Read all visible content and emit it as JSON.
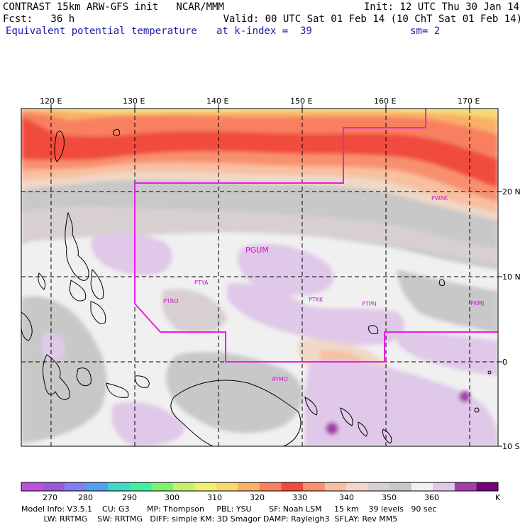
{
  "header": {
    "line1_left": "CONTRAST 15km ARW-GFS init   NCAR/MMM",
    "line1_right": "Init: 12 UTC Thu 30 Jan 14",
    "line2_left": "Fcst:   36 h",
    "line2_right": "Valid: 00 UTC Sat 01 Feb 14 (10 ChT Sat 01 Feb 14)",
    "line3_left": "Equivalent potential temperature",
    "line3_mid": "at k-index =  39",
    "line3_right": "sm= 2"
  },
  "map": {
    "lon_labels": [
      "120 E",
      "130 E",
      "140 E",
      "150 E",
      "160 E",
      "170 E"
    ],
    "lat_labels": [
      "20 N",
      "10 N",
      "0",
      "10 S"
    ],
    "stations": [
      {
        "name": "PGUM"
      },
      {
        "name": "PWAK"
      },
      {
        "name": "PTYA"
      },
      {
        "name": "PTRO"
      },
      {
        "name": "PTKK"
      },
      {
        "name": "PTPN"
      },
      {
        "name": "PKMJ"
      },
      {
        "name": "AYMO"
      }
    ],
    "boundary_color": "#e81ee8"
  },
  "colorbar": {
    "labels": [
      "270",
      "280",
      "290",
      "300",
      "310",
      "320",
      "330",
      "340",
      "350",
      "360"
    ],
    "unit": "K",
    "colors": [
      "#c050d8",
      "#9a5ad8",
      "#8080f0",
      "#50a0f0",
      "#40d8c8",
      "#40f0a0",
      "#80f070",
      "#c8f070",
      "#f0f070",
      "#f8d870",
      "#f8b068",
      "#f88060",
      "#f04c3c",
      "#f89070",
      "#f8c0a0",
      "#f0d8c8",
      "#d8d0d0",
      "#c8c8c8",
      "#f0f0f0",
      "#e0c8e8",
      "#a040a8",
      "#780078"
    ]
  },
  "footer": {
    "line1": "Model Info: V3.5.1    CU: G3       MP: Thompson     PBL: YSU       SF: Noah LSM     15 km    39 levels   90 sec",
    "line2": "         LW: RRTMG    SW: RRTMG   DIFF: simple KM: 3D Smagor DAMP: Rayleigh3  SFLAY: Rev MM5"
  }
}
